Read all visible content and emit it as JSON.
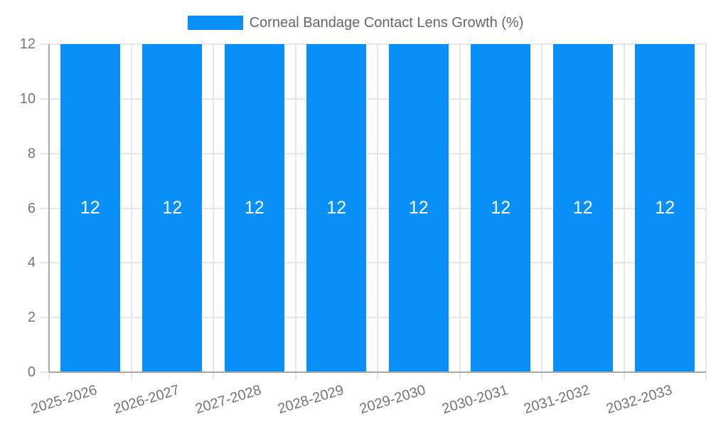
{
  "chart_data": {
    "type": "bar",
    "title": "Corneal Bandage Contact Lens Growth (%)",
    "legend_position": "top",
    "categories": [
      "2025-2026",
      "2026-2027",
      "2027-2028",
      "2028-2029",
      "2029-2030",
      "2030-2031",
      "2031-2032",
      "2032-2033"
    ],
    "series": [
      {
        "name": "Corneal Bandage Contact Lens Growth (%)",
        "values": [
          12,
          12,
          12,
          12,
          12,
          12,
          12,
          12
        ]
      }
    ],
    "bar_value_labels": [
      "12",
      "12",
      "12",
      "12",
      "12",
      "12",
      "12",
      "12"
    ],
    "xlabel": "",
    "ylabel": "",
    "ylim": [
      0,
      12
    ],
    "yticks": [
      0,
      2,
      4,
      6,
      8,
      10,
      12
    ],
    "grid": true,
    "x_label_rotation_deg": -17,
    "colors": {
      "bar": "#0890f8",
      "bar_value_label": "#ffffff",
      "legend_text": "#666666",
      "axis_text": "#757575",
      "gridline": "#e6e6e6",
      "axis_line": "#a8a8a8",
      "background": "#ffffff"
    }
  }
}
